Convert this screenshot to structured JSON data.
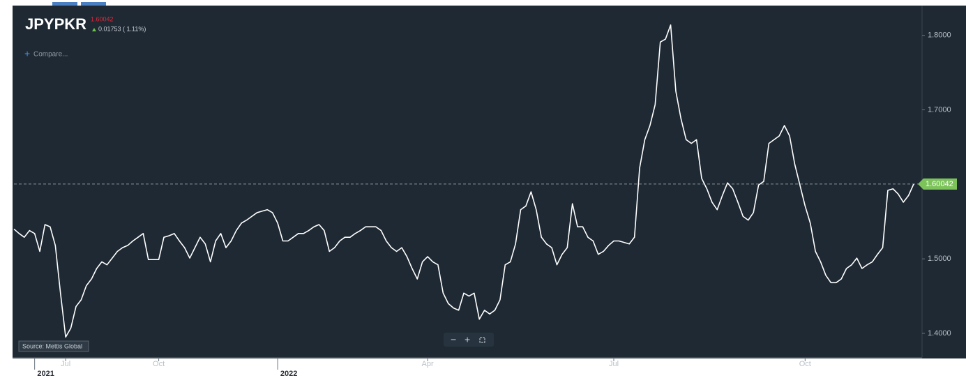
{
  "chart_data": {
    "type": "line",
    "title": "JPYPKR",
    "price_line": 1.60042,
    "change": "0.01753 ( 1.11%)",
    "compare": "Compare...",
    "source": "Source: Mettis Global",
    "color": "#ffffff",
    "values": [
      1.54,
      1.534,
      1.529,
      1.538,
      1.534,
      1.51,
      1.546,
      1.543,
      1.518,
      1.454,
      1.395,
      1.407,
      1.436,
      1.445,
      1.464,
      1.473,
      1.487,
      1.496,
      1.492,
      1.501,
      1.51,
      1.515,
      1.518,
      1.524,
      1.529,
      1.534,
      1.499,
      1.499,
      1.499,
      1.529,
      1.531,
      1.534,
      1.524,
      1.515,
      1.501,
      1.515,
      1.529,
      1.52,
      1.496,
      1.524,
      1.534,
      1.515,
      1.524,
      1.538,
      1.548,
      1.552,
      1.557,
      1.562,
      1.564,
      1.566,
      1.562,
      1.548,
      1.524,
      1.524,
      1.529,
      1.534,
      1.534,
      1.538,
      1.543,
      1.546,
      1.538,
      1.51,
      1.515,
      1.524,
      1.529,
      1.529,
      1.534,
      1.538,
      1.543,
      1.543,
      1.543,
      1.538,
      1.524,
      1.515,
      1.51,
      1.515,
      1.503,
      1.487,
      1.473,
      1.496,
      1.503,
      1.496,
      1.492,
      1.454,
      1.44,
      1.434,
      1.431,
      1.454,
      1.45,
      1.454,
      1.419,
      1.431,
      1.426,
      1.431,
      1.445,
      1.492,
      1.496,
      1.52,
      1.566,
      1.571,
      1.59,
      1.566,
      1.529,
      1.52,
      1.515,
      1.492,
      1.506,
      1.515,
      1.574,
      1.543,
      1.543,
      1.529,
      1.524,
      1.506,
      1.51,
      1.518,
      1.524,
      1.524,
      1.522,
      1.52,
      1.529,
      1.622,
      1.66,
      1.679,
      1.707,
      1.791,
      1.795,
      1.814,
      1.725,
      1.688,
      1.66,
      1.655,
      1.66,
      1.608,
      1.594,
      1.576,
      1.566,
      1.585,
      1.602,
      1.594,
      1.576,
      1.557,
      1.552,
      1.562,
      1.599,
      1.604,
      1.655,
      1.66,
      1.665,
      1.679,
      1.665,
      1.627,
      1.599,
      1.571,
      1.548,
      1.51,
      1.496,
      1.478,
      1.468,
      1.468,
      1.473,
      1.487,
      1.492,
      1.501,
      1.487,
      1.492,
      1.496,
      1.506,
      1.515,
      1.592,
      1.594,
      1.587,
      1.576,
      1.585,
      1.6004
    ],
    "xlim": [
      0,
      174
    ],
    "xticks": [
      {
        "value": 10,
        "label": "Jul"
      },
      {
        "value": 28,
        "label": "Oct"
      },
      {
        "value": 80,
        "label": "Apr"
      },
      {
        "value": 116,
        "label": "Jul"
      },
      {
        "value": 153,
        "label": "Oct"
      }
    ],
    "year_ticks": [
      {
        "value": 4,
        "label": "2021"
      },
      {
        "value": 51,
        "label": "2022"
      }
    ],
    "ylim": [
      1.37,
      1.84
    ],
    "yticks": [
      {
        "value": 1.4,
        "label": "1.4000"
      },
      {
        "value": 1.5,
        "label": "1.5000"
      },
      {
        "value": 1.6,
        "label": "1.6000"
      },
      {
        "value": 1.7,
        "label": "1.7000"
      },
      {
        "value": 1.8,
        "label": "1.8000"
      }
    ],
    "grid": false
  }
}
